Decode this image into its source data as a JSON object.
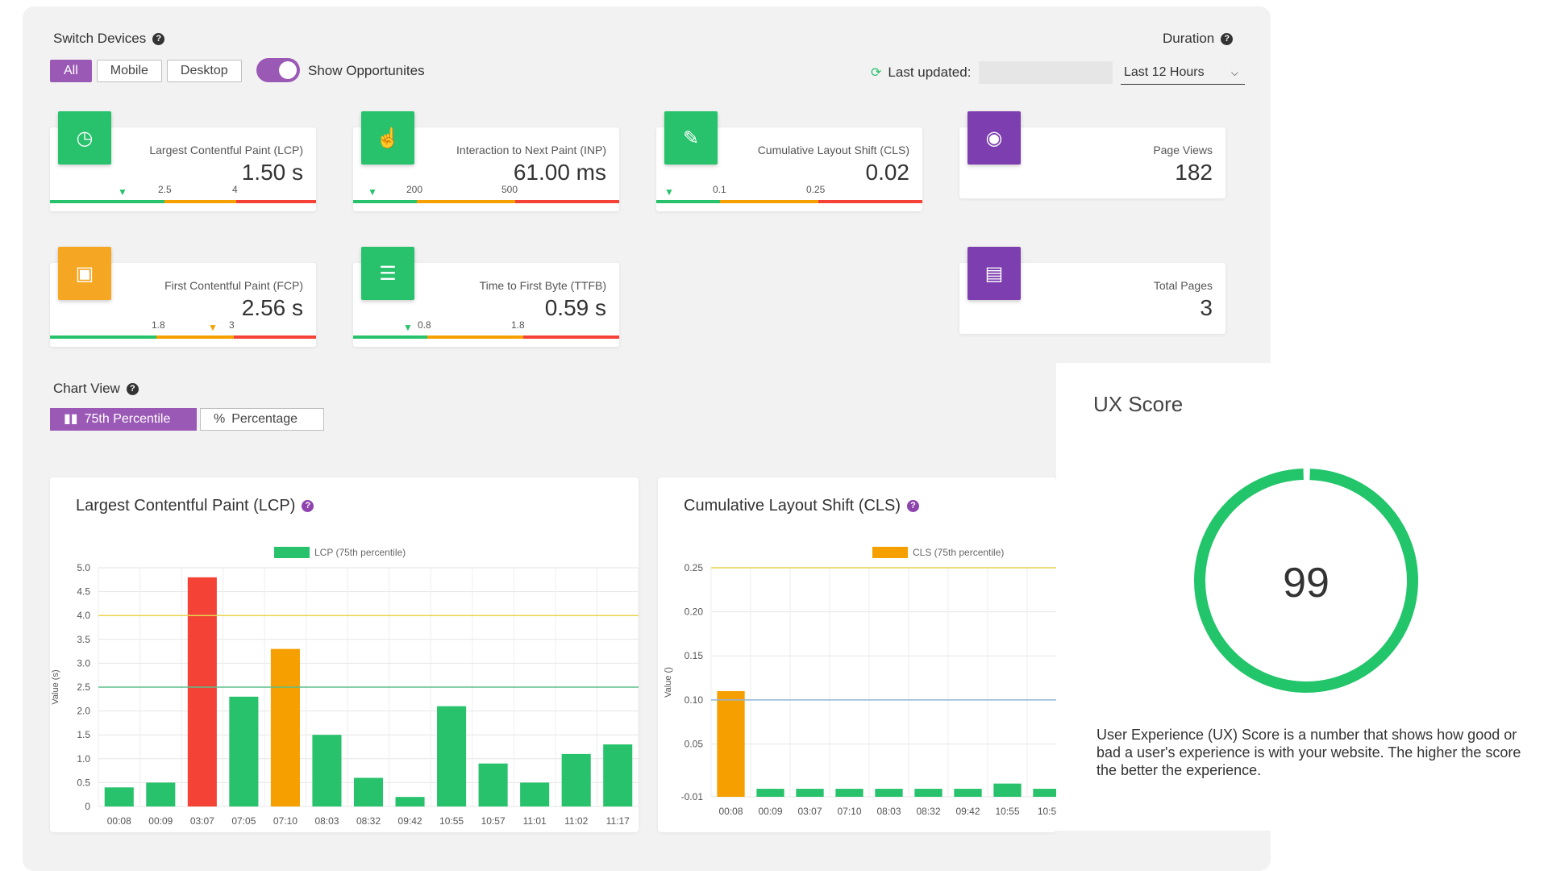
{
  "switch_devices": {
    "label": "Switch Devices",
    "buttons": [
      {
        "label": "All",
        "active": true
      },
      {
        "label": "Mobile",
        "active": false
      },
      {
        "label": "Desktop",
        "active": false
      }
    ],
    "toggle_label": "Show Opportunites",
    "toggle_on": true
  },
  "duration": {
    "label": "Duration",
    "last_updated_label": "Last updated:",
    "selected": "Last 12 Hours"
  },
  "metrics": {
    "lcp": {
      "name": "Largest Contentful Paint (LCP)",
      "value": "1.50 s",
      "t1": "2.5",
      "t2": "4",
      "icon": "clock-icon",
      "color": "#27c26b"
    },
    "inp": {
      "name": "Interaction to Next Paint (INP)",
      "value": "61.00 ms",
      "t1": "200",
      "t2": "500",
      "icon": "pointer-hand-icon",
      "color": "#27c26b"
    },
    "cls": {
      "name": "Cumulative Layout Shift (CLS)",
      "value": "0.02",
      "t1": "0.1",
      "t2": "0.25",
      "icon": "pencil-icon",
      "color": "#27c26b"
    },
    "pageviews": {
      "name": "Page Views",
      "value": "182",
      "icon": "eye-icon",
      "color": "#7d3fb0"
    },
    "fcp": {
      "name": "First Contentful Paint (FCP)",
      "value": "2.56 s",
      "t1": "1.8",
      "t2": "3",
      "icon": "image-icon",
      "color": "#f5a623"
    },
    "ttfb": {
      "name": "Time to First Byte (TTFB)",
      "value": "0.59 s",
      "t1": "0.8",
      "t2": "1.8",
      "icon": "server-icon",
      "color": "#27c26b"
    },
    "totalpages": {
      "name": "Total Pages",
      "value": "3",
      "icon": "document-icon",
      "color": "#7d3fb0"
    }
  },
  "chart_view": {
    "label": "Chart View",
    "buttons": [
      {
        "label": "75th Percentile",
        "icon": "bar-chart-icon",
        "active": true
      },
      {
        "label": "Percentage",
        "icon": "percent-icon",
        "active": false
      }
    ]
  },
  "chart_data": [
    {
      "type": "bar",
      "title": "Largest Contentful Paint (LCP)",
      "legend": "LCP (75th percentile)",
      "ylabel": "Value (s)",
      "categories": [
        "00:08",
        "00:09",
        "03:07",
        "07:05",
        "07:10",
        "08:03",
        "08:32",
        "09:42",
        "10:55",
        "10:57",
        "11:01",
        "11:02",
        "11:17"
      ],
      "values": [
        0.4,
        0.5,
        4.8,
        2.3,
        3.3,
        1.5,
        0.6,
        0.2,
        2.1,
        0.9,
        0.5,
        1.1,
        1.3
      ],
      "colors": [
        "#27c26b",
        "#27c26b",
        "#f44336",
        "#27c26b",
        "#f5a000",
        "#27c26b",
        "#27c26b",
        "#27c26b",
        "#27c26b",
        "#27c26b",
        "#27c26b",
        "#27c26b",
        "#27c26b"
      ],
      "ylim": [
        0,
        5
      ],
      "yticks": [
        "0",
        "0.5",
        "1.0",
        "1.5",
        "2.0",
        "2.5",
        "3.0",
        "3.5",
        "4.0",
        "4.5",
        "5.0"
      ],
      "thresholds": [
        {
          "value": 2.5,
          "color": "#5bbf8a"
        },
        {
          "value": 4.0,
          "color": "#e8d44d"
        }
      ],
      "legend_color": "#27c26b"
    },
    {
      "type": "bar",
      "title": "Cumulative Layout Shift (CLS)",
      "legend": "CLS (75th percentile)",
      "ylabel": "Value ()",
      "categories": [
        "00:08",
        "00:09",
        "03:07",
        "07:10",
        "08:03",
        "08:32",
        "09:42",
        "10:55",
        "10:5"
      ],
      "values": [
        0.11,
        -0.005,
        -0.005,
        -0.005,
        -0.005,
        -0.005,
        -0.005,
        0.005,
        -0.001
      ],
      "colors": [
        "#f5a000",
        "#27c26b",
        "#27c26b",
        "#27c26b",
        "#27c26b",
        "#27c26b",
        "#27c26b",
        "#27c26b",
        "#27c26b"
      ],
      "ylim": [
        -0.01,
        0.25
      ],
      "yticks": [
        "-0.01",
        "0.05",
        "0.10",
        "0.15",
        "0.20",
        "0.25"
      ],
      "thresholds": [
        {
          "value": 0.1,
          "color": "#8fb4d8"
        },
        {
          "value": 0.25,
          "color": "#e8d44d"
        }
      ],
      "legend_color": "#f5a000"
    }
  ],
  "ux_score": {
    "title": "UX Score",
    "score": "99",
    "score_fraction": 0.99,
    "description": "User Experience (UX) Score is a number that shows how good or bad a user's experience is with your website. The higher the score the better the experience."
  }
}
